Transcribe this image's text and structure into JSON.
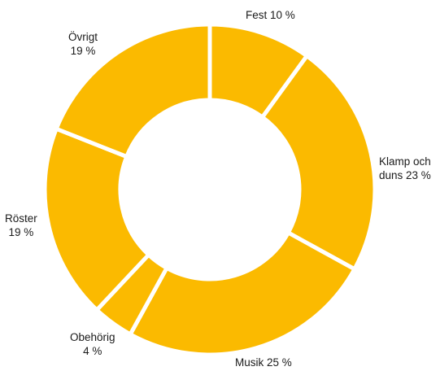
{
  "chart_data": {
    "type": "pie",
    "categories": [
      "Fest",
      "Klamp och duns",
      "Musik",
      "Obehörig",
      "Röster",
      "Övrigt"
    ],
    "values": [
      10,
      23,
      25,
      4,
      19,
      19
    ],
    "unit": "%",
    "labels": [
      {
        "lines": [
          "Fest 10 %"
        ]
      },
      {
        "lines": [
          "Klamp och",
          "duns 23 %"
        ]
      },
      {
        "lines": [
          "Musik 25 %"
        ]
      },
      {
        "lines": [
          "Obehörig",
          "4 %"
        ]
      },
      {
        "lines": [
          "Röster",
          "19 %"
        ]
      },
      {
        "lines": [
          "Övrigt",
          "19 %"
        ]
      }
    ],
    "colors": {
      "slice": "#FBBA00",
      "separator": "#ffffff"
    },
    "legend": "none"
  }
}
